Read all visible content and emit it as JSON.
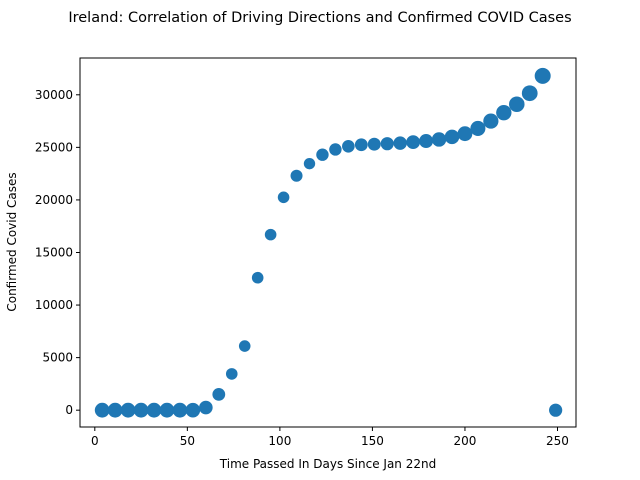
{
  "chart_data": {
    "type": "scatter",
    "title": "Ireland: Correlation of Driving Directions and Confirmed COVID Cases",
    "xlabel": "Time Passed In Days Since Jan 22nd",
    "ylabel": "Confirmed Covid Cases",
    "xlim": [
      -8,
      260
    ],
    "ylim": [
      -1600,
      33500
    ],
    "xticks": [
      0,
      50,
      100,
      150,
      200,
      250
    ],
    "yticks": [
      0,
      5000,
      10000,
      15000,
      20000,
      25000,
      30000
    ],
    "grid": false,
    "legend": "none",
    "marker_color": "#1f77b4",
    "points": [
      {
        "x": 4,
        "y": 0,
        "size": 0.85
      },
      {
        "x": 11,
        "y": 0,
        "size": 0.85
      },
      {
        "x": 18,
        "y": 0,
        "size": 0.85
      },
      {
        "x": 25,
        "y": 0,
        "size": 0.85
      },
      {
        "x": 32,
        "y": 0,
        "size": 0.85
      },
      {
        "x": 39,
        "y": 0,
        "size": 0.85
      },
      {
        "x": 46,
        "y": 0,
        "size": 0.85
      },
      {
        "x": 53,
        "y": 0,
        "size": 0.82
      },
      {
        "x": 60,
        "y": 250,
        "size": 0.7
      },
      {
        "x": 67,
        "y": 1500,
        "size": 0.6
      },
      {
        "x": 74,
        "y": 3450,
        "size": 0.45
      },
      {
        "x": 81,
        "y": 6100,
        "size": 0.45
      },
      {
        "x": 88,
        "y": 12600,
        "size": 0.45
      },
      {
        "x": 95,
        "y": 16700,
        "size": 0.45
      },
      {
        "x": 102,
        "y": 20250,
        "size": 0.45
      },
      {
        "x": 109,
        "y": 22300,
        "size": 0.5
      },
      {
        "x": 116,
        "y": 23450,
        "size": 0.42
      },
      {
        "x": 123,
        "y": 24300,
        "size": 0.55
      },
      {
        "x": 130,
        "y": 24800,
        "size": 0.55
      },
      {
        "x": 137,
        "y": 25100,
        "size": 0.58
      },
      {
        "x": 144,
        "y": 25250,
        "size": 0.6
      },
      {
        "x": 151,
        "y": 25300,
        "size": 0.62
      },
      {
        "x": 158,
        "y": 25350,
        "size": 0.65
      },
      {
        "x": 165,
        "y": 25400,
        "size": 0.68
      },
      {
        "x": 172,
        "y": 25500,
        "size": 0.72
      },
      {
        "x": 179,
        "y": 25600,
        "size": 0.75
      },
      {
        "x": 186,
        "y": 25750,
        "size": 0.8
      },
      {
        "x": 193,
        "y": 26000,
        "size": 0.82
      },
      {
        "x": 200,
        "y": 26300,
        "size": 0.85
      },
      {
        "x": 207,
        "y": 26800,
        "size": 0.88
      },
      {
        "x": 214,
        "y": 27500,
        "size": 0.9
      },
      {
        "x": 221,
        "y": 28300,
        "size": 0.92
      },
      {
        "x": 228,
        "y": 29100,
        "size": 0.94
      },
      {
        "x": 235,
        "y": 30150,
        "size": 0.97
      },
      {
        "x": 242,
        "y": 31800,
        "size": 1.0
      },
      {
        "x": 249,
        "y": 0,
        "size": 0.65
      }
    ]
  }
}
